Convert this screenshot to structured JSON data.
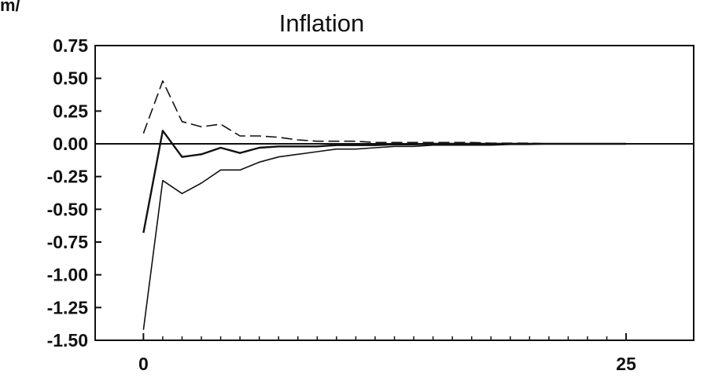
{
  "corner_fragment": "m/",
  "chart_data": {
    "type": "line",
    "title": "Inflation",
    "xlabel": "",
    "ylabel": "",
    "xlim": [
      -2.5,
      28.5
    ],
    "ylim": [
      -1.5,
      0.75
    ],
    "ytick_values": [
      0.75,
      0.5,
      0.25,
      0.0,
      -0.25,
      -0.5,
      -0.75,
      -1.0,
      -1.25,
      -1.5
    ],
    "ytick_labels": [
      "0.75",
      "0.50",
      "0.25",
      "0.00",
      "-0.25",
      "-0.50",
      "-0.75",
      "-1.00",
      "-1.25",
      "-1.50"
    ],
    "xtick_values": [
      0,
      25
    ],
    "xtick_labels": [
      "0",
      "25"
    ],
    "minor_xticks": [
      1,
      2,
      3,
      4,
      5,
      6,
      7,
      8,
      9,
      10,
      11,
      12,
      13,
      14,
      15,
      16,
      17,
      18,
      19,
      20,
      21,
      22,
      23,
      24
    ],
    "zero_line": 0,
    "grid": false,
    "legend": "none",
    "x": [
      0,
      1,
      2,
      3,
      4,
      5,
      6,
      7,
      8,
      9,
      10,
      11,
      12,
      13,
      14,
      15,
      16,
      17,
      18,
      19,
      20,
      21,
      22,
      23,
      24,
      25
    ],
    "series": [
      {
        "style": "solid",
        "values": [
          -0.68,
          0.1,
          -0.1,
          -0.08,
          -0.03,
          -0.07,
          -0.03,
          -0.02,
          -0.02,
          -0.02,
          -0.01,
          -0.01,
          -0.01,
          -0.005,
          -0.005,
          0,
          0,
          0,
          0,
          0,
          0,
          0,
          0,
          0,
          0,
          0
        ]
      },
      {
        "style": "dashed",
        "values": [
          0.08,
          0.48,
          0.17,
          0.13,
          0.15,
          0.06,
          0.06,
          0.05,
          0.03,
          0.02,
          0.02,
          0.02,
          0.01,
          0.01,
          0.01,
          0.01,
          0.01,
          0.01,
          0.005,
          0.005,
          0.005,
          0,
          0,
          0,
          0,
          0
        ]
      },
      {
        "style": "solid-thin",
        "values": [
          -1.42,
          -0.28,
          -0.38,
          -0.3,
          -0.2,
          -0.2,
          -0.14,
          -0.1,
          -0.08,
          -0.06,
          -0.04,
          -0.04,
          -0.03,
          -0.02,
          -0.02,
          -0.01,
          -0.01,
          -0.01,
          -0.01,
          -0.005,
          -0.005,
          0,
          0,
          0,
          0,
          0
        ]
      }
    ]
  }
}
